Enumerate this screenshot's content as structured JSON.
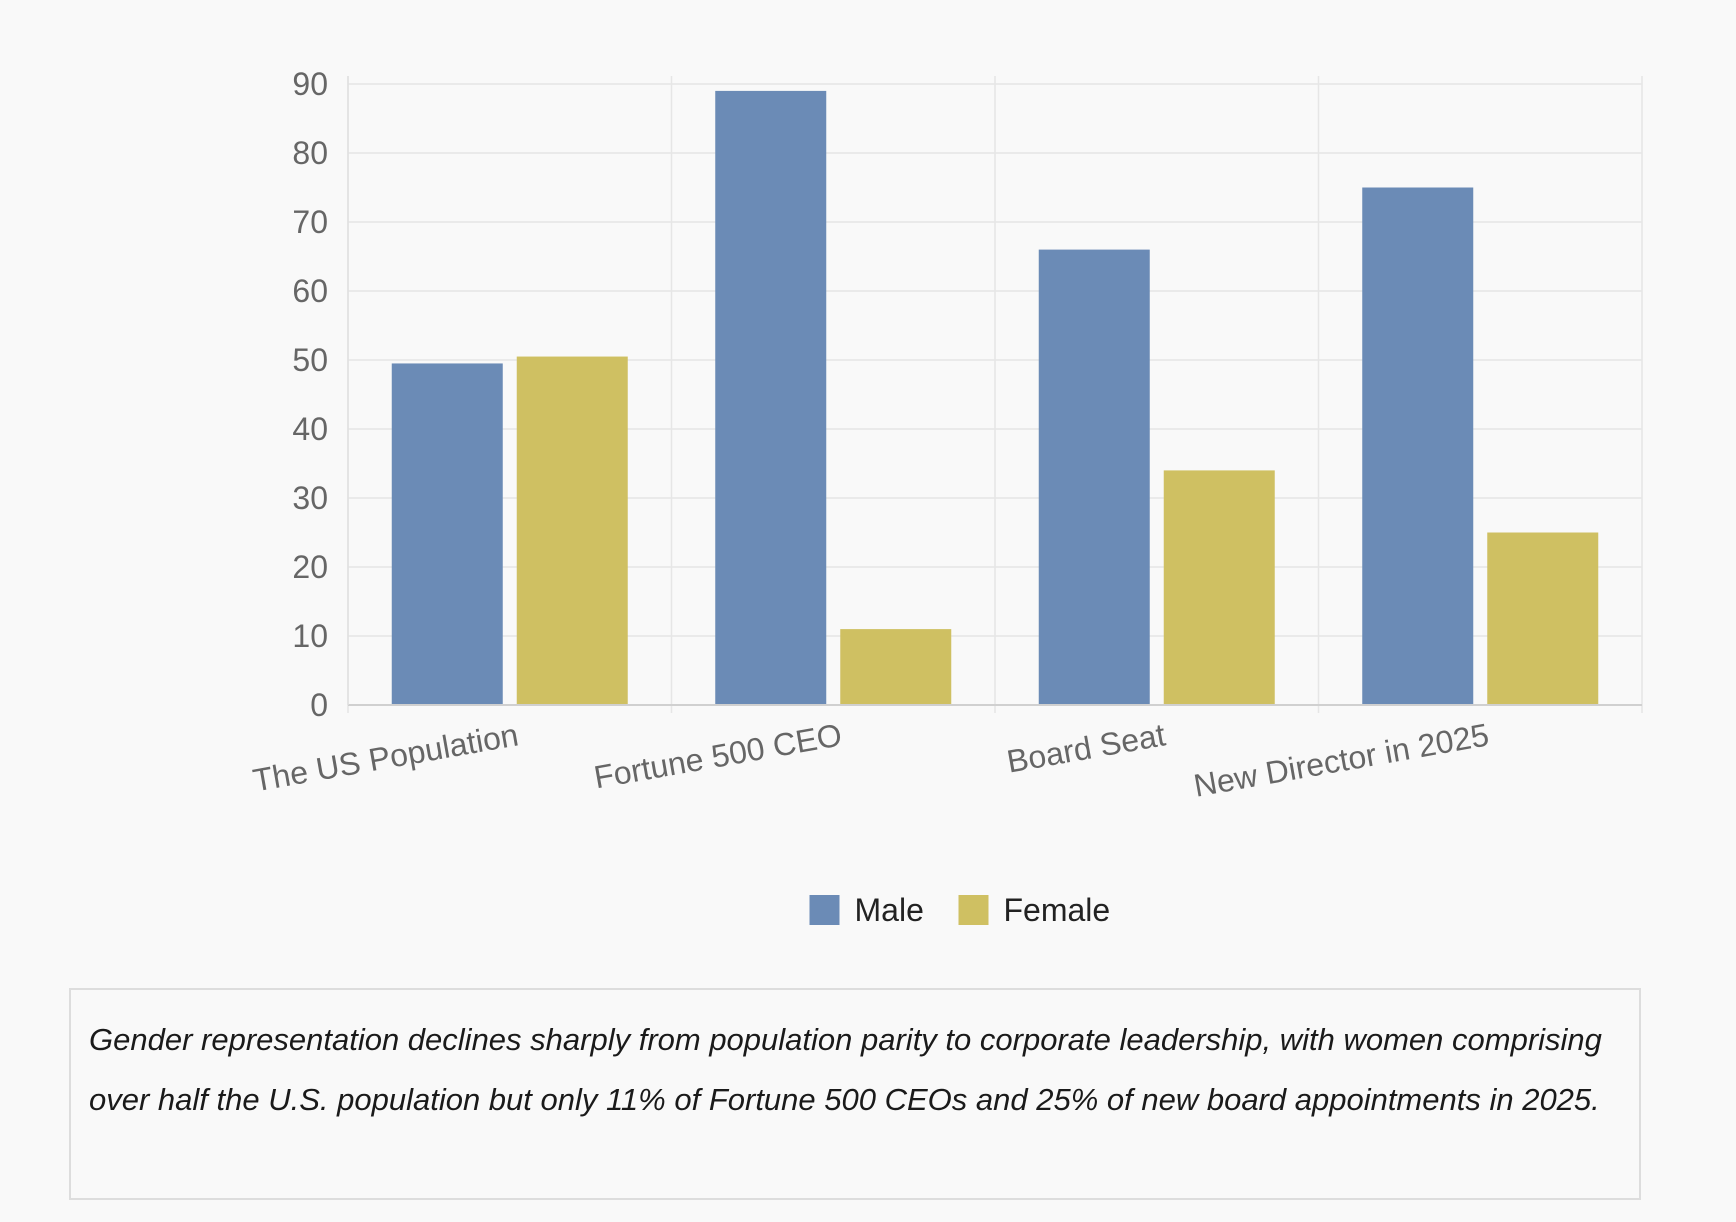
{
  "chart_data": {
    "type": "bar",
    "title": "",
    "xlabel": "",
    "ylabel": "",
    "categories": [
      "The US Population",
      "Fortune 500 CEO",
      "Board Seat",
      "New Director in 2025"
    ],
    "series": [
      {
        "name": "Male",
        "color": "#6b8bb6",
        "values": [
          49.5,
          89,
          66,
          75
        ]
      },
      {
        "name": "Female",
        "color": "#cfc062",
        "values": [
          50.5,
          11,
          34,
          25
        ]
      }
    ],
    "ylim": [
      0,
      90
    ],
    "yticks": [
      0,
      10,
      20,
      30,
      40,
      50,
      60,
      70,
      80,
      90
    ],
    "grid": true,
    "legend_position": "bottom-center"
  },
  "caption": {
    "text": "Gender representation declines sharply from population parity to corporate leadership, with women comprising over half the U.S. population but only 11% of Fortune 500 CEOs and 25% of new board appointments in 2025."
  }
}
